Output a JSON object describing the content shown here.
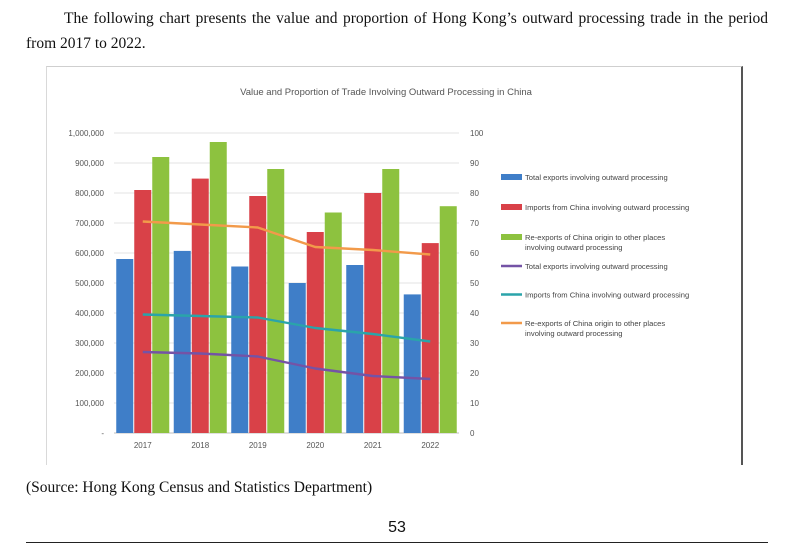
{
  "intro_text": "The following chart presents the value and proportion of Hong Kong’s outward processing trade in the period from 2017 to 2022.",
  "source_text": "(Source: Hong Kong Census and Statistics Department)",
  "page_number": "53",
  "chart_data": {
    "type": "bar",
    "title": "Value and Proportion of Trade Involving Outward Processing in China",
    "categories": [
      "2017",
      "2018",
      "2019",
      "2020",
      "2021",
      "2022"
    ],
    "ylim": [
      0,
      1000000
    ],
    "y2lim": [
      0,
      100
    ],
    "yticks": [
      "-",
      "100,000",
      "200,000",
      "300,000",
      "400,000",
      "500,000",
      "600,000",
      "700,000",
      "800,000",
      "900,000",
      "1,000,000"
    ],
    "y2ticks": [
      "0",
      "10",
      "20",
      "30",
      "40",
      "50",
      "60",
      "70",
      "80",
      "90",
      "100"
    ],
    "bar_series": [
      {
        "name": "Total exports involving outward processing",
        "color": "#3f7ec8",
        "values": [
          580000,
          607000,
          555000,
          500000,
          560000,
          462000
        ]
      },
      {
        "name": "Imports from China involving outward processing",
        "color": "#d94148",
        "values": [
          810000,
          848000,
          790000,
          670000,
          800000,
          633000
        ]
      },
      {
        "name": "Re-exports of China origin to other places involving outward processing",
        "color": "#8dc23f",
        "values": [
          920000,
          970000,
          880000,
          735000,
          880000,
          756000
        ]
      }
    ],
    "line_series": [
      {
        "name": "Total exports involving outward processing",
        "color": "#7453a6",
        "values": [
          27,
          26.5,
          25.5,
          21.5,
          19,
          18
        ]
      },
      {
        "name": "Imports from China involving outward processing",
        "color": "#2aa4aa",
        "values": [
          39.5,
          39,
          38.5,
          35,
          33,
          30.5
        ]
      },
      {
        "name": "Re-exports of China origin to other places involving outward processing",
        "color": "#f29a4a",
        "values": [
          70.5,
          69.5,
          68.5,
          62,
          61,
          59.5
        ]
      }
    ],
    "legend_position": "right"
  }
}
